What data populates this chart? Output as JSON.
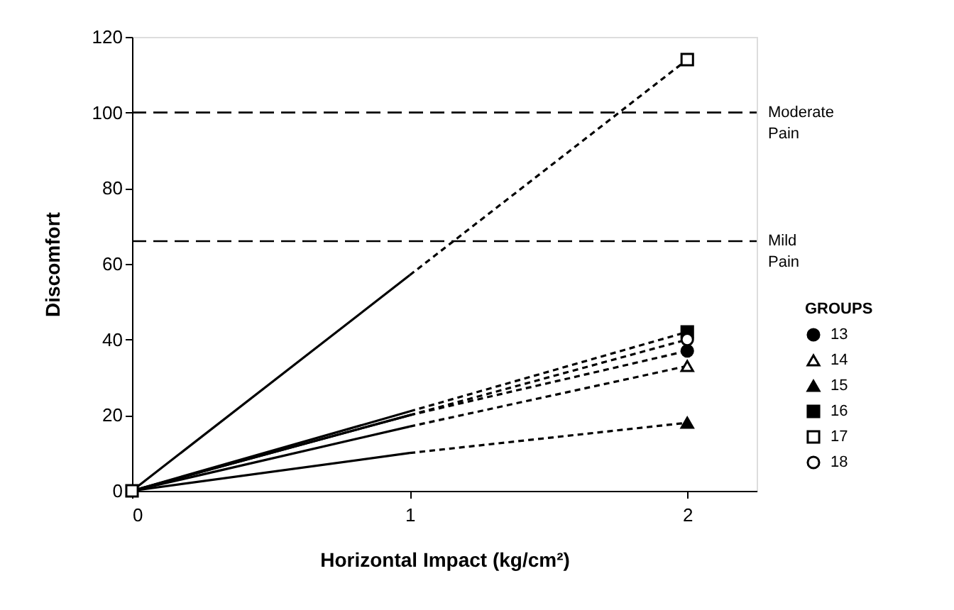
{
  "chart_data": {
    "type": "line",
    "xlabel": "Horizontal Impact (kg/cm²)",
    "ylabel": "Discomfort",
    "legend_title": "GROUPS",
    "legend": "right",
    "grid": false,
    "xlim": [
      0,
      2.25
    ],
    "xticks": [
      0,
      1,
      2
    ],
    "ylim": [
      0,
      120
    ],
    "yticks": [
      0,
      20,
      40,
      60,
      80,
      100,
      120
    ],
    "ref_lines": [
      {
        "axis": "y",
        "value": 100,
        "label": "Moderate Pain",
        "line_style": "dashed",
        "color": "#000000"
      },
      {
        "axis": "y",
        "value": 66,
        "label": "Mild Pain",
        "line_style": "dashed",
        "color": "#000000"
      }
    ],
    "series": [
      {
        "color": "#000000",
        "line_style": "solid",
        "marker": "none",
        "x": [
          0,
          1
        ],
        "values": [
          0,
          20
        ]
      },
      {
        "color": "#000000",
        "line_style": "dashed",
        "marker": "none",
        "x": [
          1,
          2
        ],
        "values": [
          20,
          37
        ]
      },
      {
        "color": "#000000",
        "line_style": "solid",
        "marker": "none",
        "x": [
          0,
          1
        ],
        "values": [
          0,
          17
        ]
      },
      {
        "color": "#000000",
        "line_style": "dashed",
        "marker": "none",
        "x": [
          1,
          2
        ],
        "values": [
          17,
          33
        ]
      },
      {
        "color": "#000000",
        "line_style": "solid",
        "marker": "none",
        "x": [
          0,
          1
        ],
        "values": [
          0,
          10
        ]
      },
      {
        "color": "#000000",
        "line_style": "dashed",
        "marker": "none",
        "x": [
          1,
          2
        ],
        "values": [
          10,
          18
        ]
      },
      {
        "color": "#000000",
        "line_style": "solid",
        "marker": "none",
        "x": [
          0,
          1
        ],
        "values": [
          0,
          21
        ]
      },
      {
        "color": "#000000",
        "line_style": "dashed",
        "marker": "none",
        "x": [
          1,
          2
        ],
        "values": [
          21,
          42
        ]
      },
      {
        "color": "#000000",
        "line_style": "solid",
        "marker": "none",
        "x": [
          0,
          1
        ],
        "values": [
          0,
          57
        ]
      },
      {
        "color": "#000000",
        "line_style": "dashed",
        "marker": "none",
        "x": [
          1,
          2
        ],
        "values": [
          57,
          114
        ]
      },
      {
        "color": "#000000",
        "line_style": "solid",
        "marker": "none",
        "x": [
          0,
          1
        ],
        "values": [
          0,
          20
        ]
      },
      {
        "color": "#000000",
        "line_style": "dashed",
        "marker": "none",
        "x": [
          1,
          2
        ],
        "values": [
          20,
          40
        ]
      },
      {
        "type": "scatter",
        "name": "13",
        "color": "#000000",
        "marker": "circle",
        "x": [
          2
        ],
        "values": [
          37
        ]
      },
      {
        "type": "scatter",
        "name": "14",
        "color": "#ffffff",
        "marker": "triangle",
        "x": [
          2
        ],
        "values": [
          33
        ]
      },
      {
        "type": "scatter",
        "name": "15",
        "color": "#000000",
        "marker": "triangle",
        "x": [
          2
        ],
        "values": [
          18
        ]
      },
      {
        "type": "scatter",
        "name": "16",
        "color": "#000000",
        "marker": "square",
        "x": [
          2
        ],
        "values": [
          42
        ]
      },
      {
        "type": "scatter",
        "name": "17",
        "color": "#ffffff",
        "marker": "square",
        "x": [
          0,
          2
        ],
        "values": [
          0,
          114
        ]
      },
      {
        "type": "scatter",
        "name": "18",
        "color": "#ffffff",
        "marker": "circle",
        "x": [
          2
        ],
        "values": [
          40
        ]
      }
    ]
  }
}
